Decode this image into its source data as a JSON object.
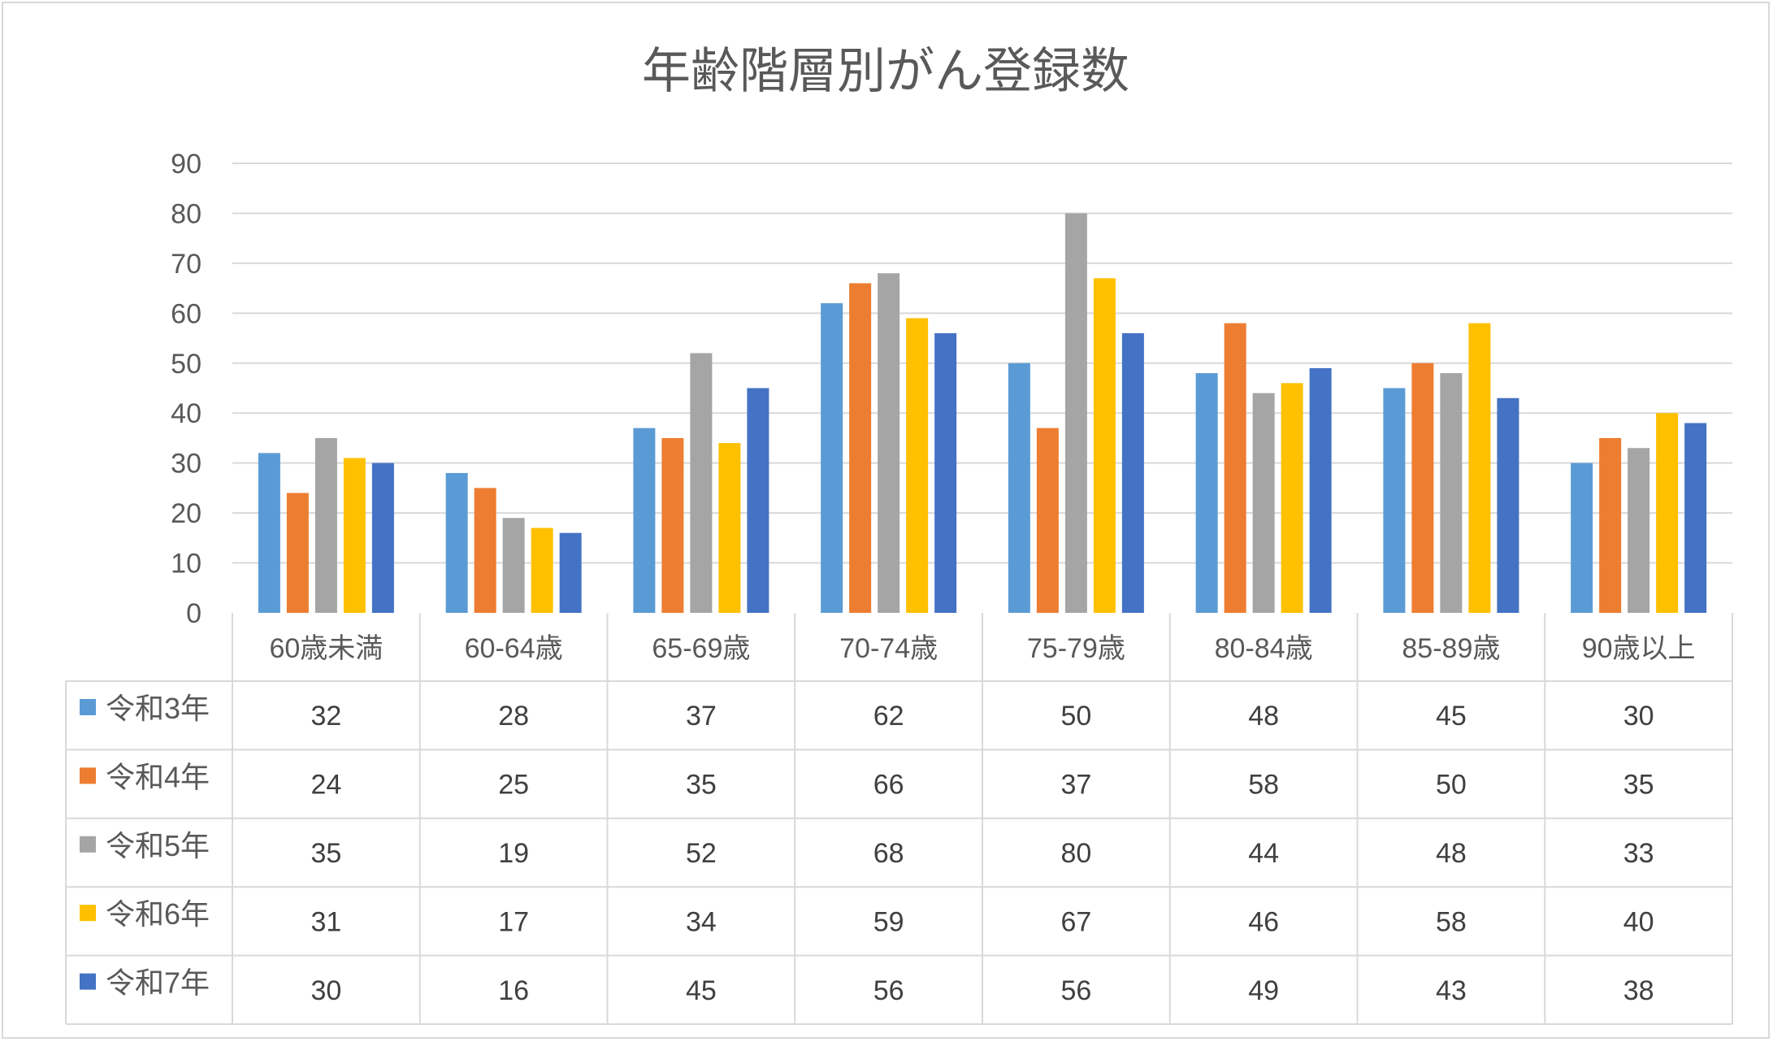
{
  "chart_data": {
    "type": "bar",
    "title": "年齢階層別がん登録数",
    "xlabel": "",
    "ylabel": "",
    "ylim": [
      0,
      90
    ],
    "yticks": [
      0,
      10,
      20,
      30,
      40,
      50,
      60,
      70,
      80,
      90
    ],
    "grid": true,
    "legend": "data-table",
    "categories": [
      "60歳未満",
      "60-64歳",
      "65-69歳",
      "70-74歳",
      "75-79歳",
      "80-84歳",
      "85-89歳",
      "90歳以上"
    ],
    "series": [
      {
        "name": "令和3年",
        "color": "#5B9BD5",
        "values": [
          32,
          28,
          37,
          62,
          50,
          48,
          45,
          30
        ]
      },
      {
        "name": "令和4年",
        "color": "#ED7D31",
        "values": [
          24,
          25,
          35,
          66,
          37,
          58,
          50,
          35
        ]
      },
      {
        "name": "令和5年",
        "color": "#A5A5A5",
        "values": [
          35,
          19,
          52,
          68,
          80,
          44,
          48,
          33
        ]
      },
      {
        "name": "令和6年",
        "color": "#FFC000",
        "values": [
          31,
          17,
          34,
          59,
          67,
          46,
          58,
          40
        ]
      },
      {
        "name": "令和7年",
        "color": "#4472C4",
        "values": [
          30,
          16,
          45,
          56,
          56,
          49,
          43,
          38
        ]
      }
    ]
  }
}
